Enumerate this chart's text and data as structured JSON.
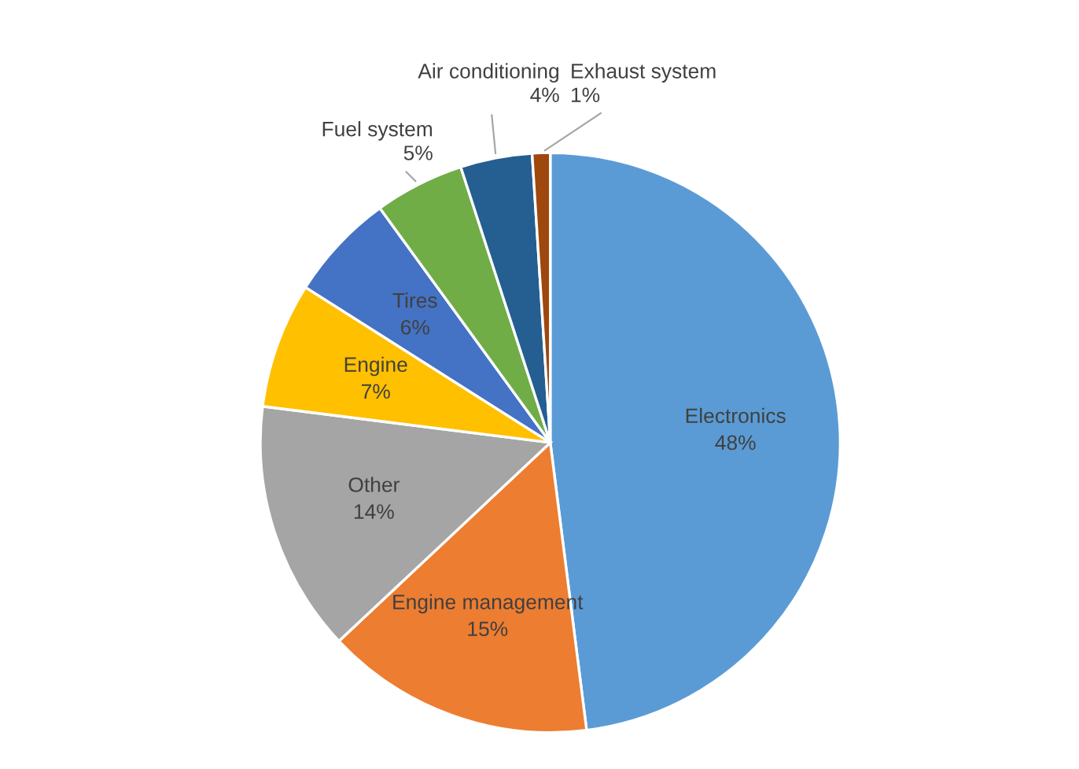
{
  "chart_data": {
    "type": "pie",
    "categories": [
      "Electronics",
      "Engine management",
      "Other",
      "Engine",
      "Tires",
      "Fuel system",
      "Air conditioning",
      "Exhaust system"
    ],
    "values": [
      48,
      15,
      14,
      7,
      6,
      5,
      4,
      1
    ],
    "colors": [
      "#5b9bd5",
      "#ed7d31",
      "#a5a5a5",
      "#ffc000",
      "#4472c4",
      "#70ad47",
      "#255e91",
      "#9e480e"
    ],
    "value_labels": [
      "48%",
      "15%",
      "14%",
      "7%",
      "6%",
      "5%",
      "4%",
      "1%"
    ],
    "legend": false
  }
}
